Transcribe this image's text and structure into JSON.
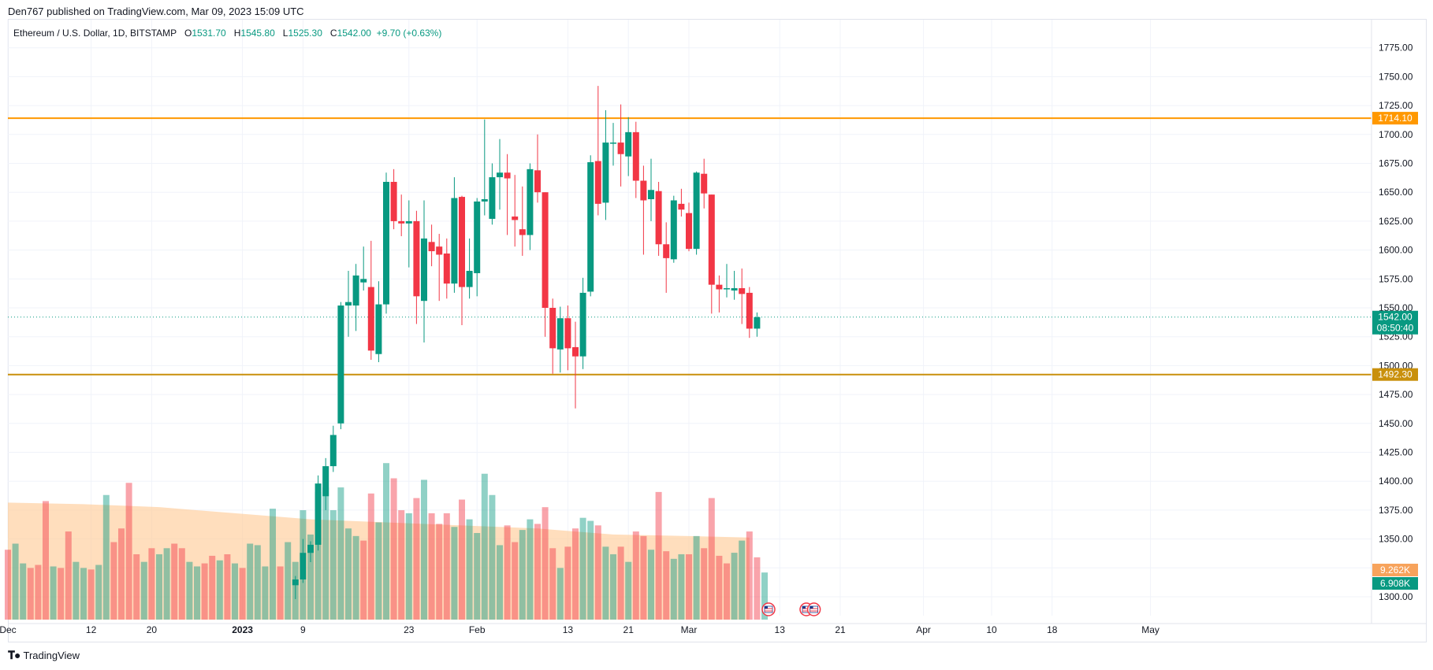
{
  "header": {
    "published": "Den767 published on TradingView.com, Mar 09, 2023 15:09 UTC"
  },
  "symbol": {
    "name": "Ethereum / U.S. Dollar, 1D, BITSTAMP",
    "open_label": "O",
    "open": "1531.70",
    "high_label": "H",
    "high": "1545.80",
    "low_label": "L",
    "low": "1525.30",
    "close_label": "C",
    "close": "1542.00",
    "change": "+9.70 (+0.63%)"
  },
  "footer": {
    "logo_text": "TradingView"
  },
  "colors": {
    "up": "#089981",
    "down": "#f23645",
    "resistance": "#ff9800",
    "support": "#c9900c",
    "volume_ma": "#ffcc99"
  },
  "chart_data": {
    "type": "candlestick",
    "title": "Ethereum / U.S. Dollar, 1D, BITSTAMP",
    "y_ticks": [
      "1300.00",
      "1325.00",
      "1350.00",
      "1375.00",
      "1400.00",
      "1425.00",
      "1450.00",
      "1475.00",
      "1500.00",
      "1525.00",
      "1550.00",
      "1575.00",
      "1600.00",
      "1625.00",
      "1650.00",
      "1675.00",
      "1700.00",
      "1725.00",
      "1750.00",
      "1775.00"
    ],
    "ylim": [
      1280,
      1790
    ],
    "x_ticks": [
      {
        "day": 0,
        "label": "Dec"
      },
      {
        "day": 11,
        "label": "12"
      },
      {
        "day": 19,
        "label": "20"
      },
      {
        "day": 31,
        "label": "2023"
      },
      {
        "day": 39,
        "label": "9"
      },
      {
        "day": 53,
        "label": "23"
      },
      {
        "day": 62,
        "label": "Feb"
      },
      {
        "day": 74,
        "label": "13"
      },
      {
        "day": 82,
        "label": "21"
      },
      {
        "day": 90,
        "label": "Mar"
      },
      {
        "day": 102,
        "label": "13"
      },
      {
        "day": 110,
        "label": "21"
      },
      {
        "day": 121,
        "label": "Apr"
      },
      {
        "day": 130,
        "label": "10"
      },
      {
        "day": 138,
        "label": "18"
      },
      {
        "day": 151,
        "label": "May"
      }
    ],
    "grid": true,
    "levels": [
      {
        "name": "resistance",
        "value": 1714.1,
        "label": "1714.10"
      },
      {
        "name": "support",
        "value": 1492.3,
        "label": "1492.30"
      }
    ],
    "current_price": {
      "value": 1542.0,
      "label": "1542.00",
      "countdown": "08:50:40"
    },
    "volume_labels": [
      {
        "label": "9.262K",
        "kind": "ma"
      },
      {
        "label": "6.908K",
        "kind": "last"
      }
    ],
    "candles": [
      {
        "day": 38,
        "o": 1310,
        "h": 1318,
        "l": 1298,
        "c": 1315
      },
      {
        "day": 39,
        "o": 1315,
        "h": 1350,
        "l": 1312,
        "c": 1338
      },
      {
        "day": 40,
        "o": 1338,
        "h": 1348,
        "l": 1330,
        "c": 1345
      },
      {
        "day": 41,
        "o": 1345,
        "h": 1405,
        "l": 1340,
        "c": 1398
      },
      {
        "day": 42,
        "o": 1387,
        "h": 1420,
        "l": 1375,
        "c": 1413
      },
      {
        "day": 43,
        "o": 1413,
        "h": 1448,
        "l": 1408,
        "c": 1440
      },
      {
        "day": 44,
        "o": 1450,
        "h": 1555,
        "l": 1445,
        "c": 1552
      },
      {
        "day": 45,
        "o": 1552,
        "h": 1582,
        "l": 1525,
        "c": 1555
      },
      {
        "day": 46,
        "o": 1552,
        "h": 1588,
        "l": 1530,
        "c": 1578
      },
      {
        "day": 47,
        "o": 1572,
        "h": 1603,
        "l": 1565,
        "c": 1575
      },
      {
        "day": 48,
        "o": 1568,
        "h": 1608,
        "l": 1505,
        "c": 1513
      },
      {
        "day": 49,
        "o": 1510,
        "h": 1573,
        "l": 1503,
        "c": 1553
      },
      {
        "day": 50,
        "o": 1553,
        "h": 1667,
        "l": 1545,
        "c": 1659
      },
      {
        "day": 51,
        "o": 1659,
        "h": 1670,
        "l": 1618,
        "c": 1625
      },
      {
        "day": 52,
        "o": 1625,
        "h": 1648,
        "l": 1612,
        "c": 1623
      },
      {
        "day": 53,
        "o": 1623,
        "h": 1643,
        "l": 1585,
        "c": 1625
      },
      {
        "day": 54,
        "o": 1625,
        "h": 1634,
        "l": 1536,
        "c": 1560
      },
      {
        "day": 55,
        "o": 1556,
        "h": 1643,
        "l": 1520,
        "c": 1610
      },
      {
        "day": 56,
        "o": 1607,
        "h": 1622,
        "l": 1586,
        "c": 1599
      },
      {
        "day": 57,
        "o": 1603,
        "h": 1614,
        "l": 1556,
        "c": 1596
      },
      {
        "day": 58,
        "o": 1597,
        "h": 1610,
        "l": 1558,
        "c": 1571
      },
      {
        "day": 59,
        "o": 1571,
        "h": 1663,
        "l": 1563,
        "c": 1645
      },
      {
        "day": 60,
        "o": 1646,
        "h": 1647,
        "l": 1535,
        "c": 1568
      },
      {
        "day": 61,
        "o": 1568,
        "h": 1610,
        "l": 1558,
        "c": 1582
      },
      {
        "day": 62,
        "o": 1580,
        "h": 1645,
        "l": 1560,
        "c": 1642
      },
      {
        "day": 63,
        "o": 1642,
        "h": 1713,
        "l": 1630,
        "c": 1644
      },
      {
        "day": 64,
        "o": 1627,
        "h": 1675,
        "l": 1622,
        "c": 1663
      },
      {
        "day": 65,
        "o": 1663,
        "h": 1696,
        "l": 1635,
        "c": 1667
      },
      {
        "day": 66,
        "o": 1667,
        "h": 1683,
        "l": 1613,
        "c": 1662
      },
      {
        "day": 67,
        "o": 1629,
        "h": 1665,
        "l": 1603,
        "c": 1626
      },
      {
        "day": 68,
        "o": 1618,
        "h": 1655,
        "l": 1595,
        "c": 1613
      },
      {
        "day": 69,
        "o": 1613,
        "h": 1675,
        "l": 1600,
        "c": 1670
      },
      {
        "day": 70,
        "o": 1669,
        "h": 1700,
        "l": 1641,
        "c": 1650
      },
      {
        "day": 71,
        "o": 1650,
        "h": 1650,
        "l": 1525,
        "c": 1550
      },
      {
        "day": 72,
        "o": 1550,
        "h": 1558,
        "l": 1493,
        "c": 1515
      },
      {
        "day": 73,
        "o": 1514,
        "h": 1551,
        "l": 1494,
        "c": 1541
      },
      {
        "day": 74,
        "o": 1541,
        "h": 1552,
        "l": 1496,
        "c": 1515
      },
      {
        "day": 75,
        "o": 1516,
        "h": 1538,
        "l": 1463,
        "c": 1508
      },
      {
        "day": 76,
        "o": 1508,
        "h": 1576,
        "l": 1497,
        "c": 1563
      },
      {
        "day": 77,
        "o": 1564,
        "h": 1682,
        "l": 1560,
        "c": 1676
      },
      {
        "day": 78,
        "o": 1677,
        "h": 1742,
        "l": 1630,
        "c": 1640
      },
      {
        "day": 79,
        "o": 1641,
        "h": 1721,
        "l": 1626,
        "c": 1693
      },
      {
        "day": 80,
        "o": 1692,
        "h": 1710,
        "l": 1673,
        "c": 1693
      },
      {
        "day": 81,
        "o": 1693,
        "h": 1726,
        "l": 1655,
        "c": 1683
      },
      {
        "day": 82,
        "o": 1681,
        "h": 1715,
        "l": 1664,
        "c": 1702
      },
      {
        "day": 83,
        "o": 1702,
        "h": 1711,
        "l": 1645,
        "c": 1660
      },
      {
        "day": 84,
        "o": 1660,
        "h": 1673,
        "l": 1596,
        "c": 1643
      },
      {
        "day": 85,
        "o": 1644,
        "h": 1679,
        "l": 1625,
        "c": 1652
      },
      {
        "day": 86,
        "o": 1651,
        "h": 1659,
        "l": 1595,
        "c": 1605
      },
      {
        "day": 87,
        "o": 1605,
        "h": 1624,
        "l": 1563,
        "c": 1593
      },
      {
        "day": 88,
        "o": 1592,
        "h": 1647,
        "l": 1589,
        "c": 1643
      },
      {
        "day": 89,
        "o": 1640,
        "h": 1653,
        "l": 1629,
        "c": 1635
      },
      {
        "day": 90,
        "o": 1632,
        "h": 1641,
        "l": 1599,
        "c": 1601
      },
      {
        "day": 91,
        "o": 1601,
        "h": 1668,
        "l": 1596,
        "c": 1667
      },
      {
        "day": 92,
        "o": 1666,
        "h": 1679,
        "l": 1636,
        "c": 1649
      },
      {
        "day": 93,
        "o": 1648,
        "h": 1648,
        "l": 1545,
        "c": 1570
      },
      {
        "day": 94,
        "o": 1570,
        "h": 1578,
        "l": 1546,
        "c": 1566
      },
      {
        "day": 95,
        "o": 1566,
        "h": 1588,
        "l": 1559,
        "c": 1567
      },
      {
        "day": 96,
        "o": 1565,
        "h": 1582,
        "l": 1557,
        "c": 1567
      },
      {
        "day": 97,
        "o": 1567,
        "h": 1584,
        "l": 1536,
        "c": 1562
      },
      {
        "day": 98,
        "o": 1563,
        "h": 1568,
        "l": 1524,
        "c": 1532
      },
      {
        "day": 99,
        "o": 1532,
        "h": 1546,
        "l": 1525,
        "c": 1542
      }
    ],
    "volumes": [
      {
        "day": 0,
        "v": 0.46,
        "dir": "down"
      },
      {
        "day": 1,
        "v": 0.5,
        "dir": "up"
      },
      {
        "day": 2,
        "v": 0.37,
        "dir": "up"
      },
      {
        "day": 3,
        "v": 0.34,
        "dir": "down"
      },
      {
        "day": 4,
        "v": 0.36,
        "dir": "down"
      },
      {
        "day": 5,
        "v": 0.78,
        "dir": "down"
      },
      {
        "day": 6,
        "v": 0.35,
        "dir": "up"
      },
      {
        "day": 7,
        "v": 0.34,
        "dir": "down"
      },
      {
        "day": 8,
        "v": 0.58,
        "dir": "down"
      },
      {
        "day": 9,
        "v": 0.38,
        "dir": "up"
      },
      {
        "day": 10,
        "v": 0.34,
        "dir": "up"
      },
      {
        "day": 11,
        "v": 0.33,
        "dir": "down"
      },
      {
        "day": 12,
        "v": 0.36,
        "dir": "up"
      },
      {
        "day": 13,
        "v": 0.82,
        "dir": "up"
      },
      {
        "day": 14,
        "v": 0.51,
        "dir": "down"
      },
      {
        "day": 15,
        "v": 0.6,
        "dir": "down"
      },
      {
        "day": 16,
        "v": 0.9,
        "dir": "down"
      },
      {
        "day": 17,
        "v": 0.43,
        "dir": "down"
      },
      {
        "day": 18,
        "v": 0.38,
        "dir": "up"
      },
      {
        "day": 19,
        "v": 0.47,
        "dir": "down"
      },
      {
        "day": 20,
        "v": 0.43,
        "dir": "up"
      },
      {
        "day": 21,
        "v": 0.47,
        "dir": "up"
      },
      {
        "day": 22,
        "v": 0.5,
        "dir": "down"
      },
      {
        "day": 23,
        "v": 0.47,
        "dir": "down"
      },
      {
        "day": 24,
        "v": 0.38,
        "dir": "up"
      },
      {
        "day": 25,
        "v": 0.35,
        "dir": "up"
      },
      {
        "day": 26,
        "v": 0.37,
        "dir": "down"
      },
      {
        "day": 27,
        "v": 0.42,
        "dir": "down"
      },
      {
        "day": 28,
        "v": 0.39,
        "dir": "up"
      },
      {
        "day": 29,
        "v": 0.43,
        "dir": "down"
      },
      {
        "day": 30,
        "v": 0.37,
        "dir": "up"
      },
      {
        "day": 31,
        "v": 0.34,
        "dir": "down"
      },
      {
        "day": 32,
        "v": 0.5,
        "dir": "up"
      },
      {
        "day": 33,
        "v": 0.49,
        "dir": "up"
      },
      {
        "day": 34,
        "v": 0.35,
        "dir": "up"
      },
      {
        "day": 35,
        "v": 0.73,
        "dir": "up"
      },
      {
        "day": 36,
        "v": 0.35,
        "dir": "down"
      },
      {
        "day": 37,
        "v": 0.51,
        "dir": "up"
      },
      {
        "day": 38,
        "v": 0.38,
        "dir": "up"
      },
      {
        "day": 39,
        "v": 0.72,
        "dir": "up"
      },
      {
        "day": 40,
        "v": 0.56,
        "dir": "up"
      },
      {
        "day": 41,
        "v": 0.84,
        "dir": "up"
      },
      {
        "day": 42,
        "v": 0.87,
        "dir": "up"
      },
      {
        "day": 43,
        "v": 0.72,
        "dir": "up"
      },
      {
        "day": 44,
        "v": 0.87,
        "dir": "up"
      },
      {
        "day": 45,
        "v": 0.6,
        "dir": "up"
      },
      {
        "day": 46,
        "v": 0.55,
        "dir": "up"
      },
      {
        "day": 47,
        "v": 0.52,
        "dir": "down"
      },
      {
        "day": 48,
        "v": 0.83,
        "dir": "down"
      },
      {
        "day": 49,
        "v": 0.64,
        "dir": "up"
      },
      {
        "day": 50,
        "v": 1.03,
        "dir": "up"
      },
      {
        "day": 51,
        "v": 0.93,
        "dir": "down"
      },
      {
        "day": 52,
        "v": 0.72,
        "dir": "down"
      },
      {
        "day": 53,
        "v": 0.7,
        "dir": "up"
      },
      {
        "day": 54,
        "v": 0.8,
        "dir": "down"
      },
      {
        "day": 55,
        "v": 0.92,
        "dir": "up"
      },
      {
        "day": 56,
        "v": 0.7,
        "dir": "down"
      },
      {
        "day": 57,
        "v": 0.63,
        "dir": "down"
      },
      {
        "day": 58,
        "v": 0.7,
        "dir": "down"
      },
      {
        "day": 59,
        "v": 0.61,
        "dir": "up"
      },
      {
        "day": 60,
        "v": 0.79,
        "dir": "down"
      },
      {
        "day": 61,
        "v": 0.66,
        "dir": "up"
      },
      {
        "day": 62,
        "v": 0.57,
        "dir": "up"
      },
      {
        "day": 63,
        "v": 0.96,
        "dir": "up"
      },
      {
        "day": 64,
        "v": 0.82,
        "dir": "up"
      },
      {
        "day": 65,
        "v": 0.49,
        "dir": "up"
      },
      {
        "day": 66,
        "v": 0.62,
        "dir": "down"
      },
      {
        "day": 67,
        "v": 0.51,
        "dir": "down"
      },
      {
        "day": 68,
        "v": 0.59,
        "dir": "up"
      },
      {
        "day": 69,
        "v": 0.66,
        "dir": "up"
      },
      {
        "day": 70,
        "v": 0.63,
        "dir": "down"
      },
      {
        "day": 71,
        "v": 0.74,
        "dir": "down"
      },
      {
        "day": 72,
        "v": 0.47,
        "dir": "down"
      },
      {
        "day": 73,
        "v": 0.34,
        "dir": "up"
      },
      {
        "day": 74,
        "v": 0.48,
        "dir": "down"
      },
      {
        "day": 75,
        "v": 0.6,
        "dir": "down"
      },
      {
        "day": 76,
        "v": 0.67,
        "dir": "up"
      },
      {
        "day": 77,
        "v": 0.65,
        "dir": "up"
      },
      {
        "day": 78,
        "v": 0.62,
        "dir": "down"
      },
      {
        "day": 79,
        "v": 0.48,
        "dir": "up"
      },
      {
        "day": 80,
        "v": 0.43,
        "dir": "up"
      },
      {
        "day": 81,
        "v": 0.48,
        "dir": "down"
      },
      {
        "day": 82,
        "v": 0.38,
        "dir": "up"
      },
      {
        "day": 83,
        "v": 0.58,
        "dir": "down"
      },
      {
        "day": 84,
        "v": 0.55,
        "dir": "down"
      },
      {
        "day": 85,
        "v": 0.46,
        "dir": "up"
      },
      {
        "day": 86,
        "v": 0.84,
        "dir": "down"
      },
      {
        "day": 87,
        "v": 0.45,
        "dir": "down"
      },
      {
        "day": 88,
        "v": 0.4,
        "dir": "up"
      },
      {
        "day": 89,
        "v": 0.43,
        "dir": "up"
      },
      {
        "day": 90,
        "v": 0.43,
        "dir": "down"
      },
      {
        "day": 91,
        "v": 0.55,
        "dir": "up"
      },
      {
        "day": 92,
        "v": 0.47,
        "dir": "down"
      },
      {
        "day": 93,
        "v": 0.8,
        "dir": "down"
      },
      {
        "day": 94,
        "v": 0.42,
        "dir": "down"
      },
      {
        "day": 95,
        "v": 0.37,
        "dir": "down"
      },
      {
        "day": 96,
        "v": 0.44,
        "dir": "up"
      },
      {
        "day": 97,
        "v": 0.52,
        "dir": "up"
      },
      {
        "day": 98,
        "v": 0.58,
        "dir": "down"
      },
      {
        "day": 99,
        "v": 0.41,
        "dir": "down"
      },
      {
        "day": 100,
        "v": 0.31,
        "dir": "up"
      }
    ],
    "volume_ma": [
      {
        "day": 0,
        "v": 0.77
      },
      {
        "day": 10,
        "v": 0.76
      },
      {
        "day": 20,
        "v": 0.74
      },
      {
        "day": 30,
        "v": 0.7
      },
      {
        "day": 40,
        "v": 0.66
      },
      {
        "day": 50,
        "v": 0.64
      },
      {
        "day": 60,
        "v": 0.62
      },
      {
        "day": 70,
        "v": 0.6
      },
      {
        "day": 80,
        "v": 0.56
      },
      {
        "day": 90,
        "v": 0.55
      },
      {
        "day": 98,
        "v": 0.54
      }
    ],
    "events": [
      {
        "day": 100,
        "kind": "us-flag-icon"
      },
      {
        "day": 105,
        "kind": "us-flag-icon"
      },
      {
        "day": 106,
        "kind": "us-flag-icon"
      }
    ]
  }
}
